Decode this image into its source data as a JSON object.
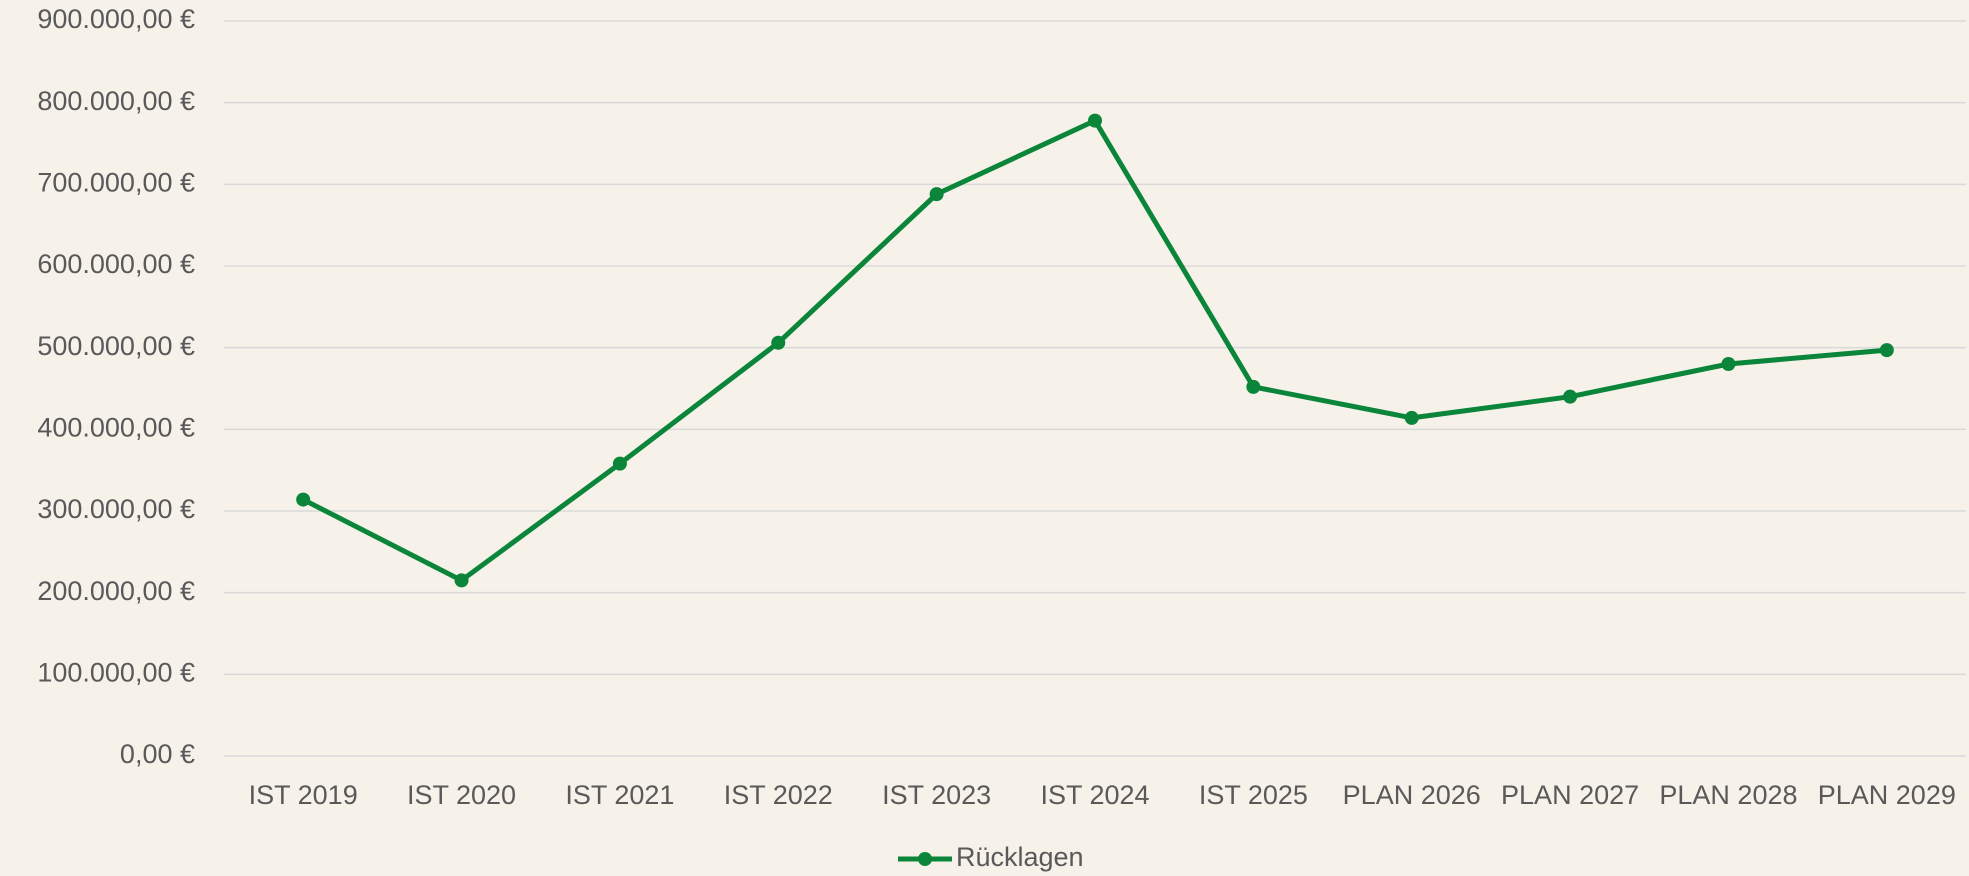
{
  "chart_data": {
    "type": "line",
    "categories": [
      "IST 2019",
      "IST 2020",
      "IST 2021",
      "IST 2022",
      "IST 2023",
      "IST 2024",
      "IST 2025",
      "PLAN 2026",
      "PLAN 2027",
      "PLAN 2028",
      "PLAN 2029"
    ],
    "series": [
      {
        "name": "Rücklagen",
        "color": "#0a8539",
        "values": [
          314000,
          215000,
          358000,
          506000,
          688000,
          778000,
          452000,
          414000,
          440000,
          480000,
          497000
        ]
      }
    ],
    "ylim": [
      0,
      900000
    ],
    "yticks": [
      {
        "value": 0,
        "label": "0,00 €"
      },
      {
        "value": 100000,
        "label": "100.000,00 €"
      },
      {
        "value": 200000,
        "label": "200.000,00 €"
      },
      {
        "value": 300000,
        "label": "300.000,00 €"
      },
      {
        "value": 400000,
        "label": "400.000,00 €"
      },
      {
        "value": 500000,
        "label": "500.000,00 €"
      },
      {
        "value": 600000,
        "label": "600.000,00 €"
      },
      {
        "value": 700000,
        "label": "700.000,00 €"
      },
      {
        "value": 800000,
        "label": "800.000,00 €"
      },
      {
        "value": 900000,
        "label": "900.000,00 €"
      }
    ],
    "grid": true,
    "legend": "bottom"
  }
}
